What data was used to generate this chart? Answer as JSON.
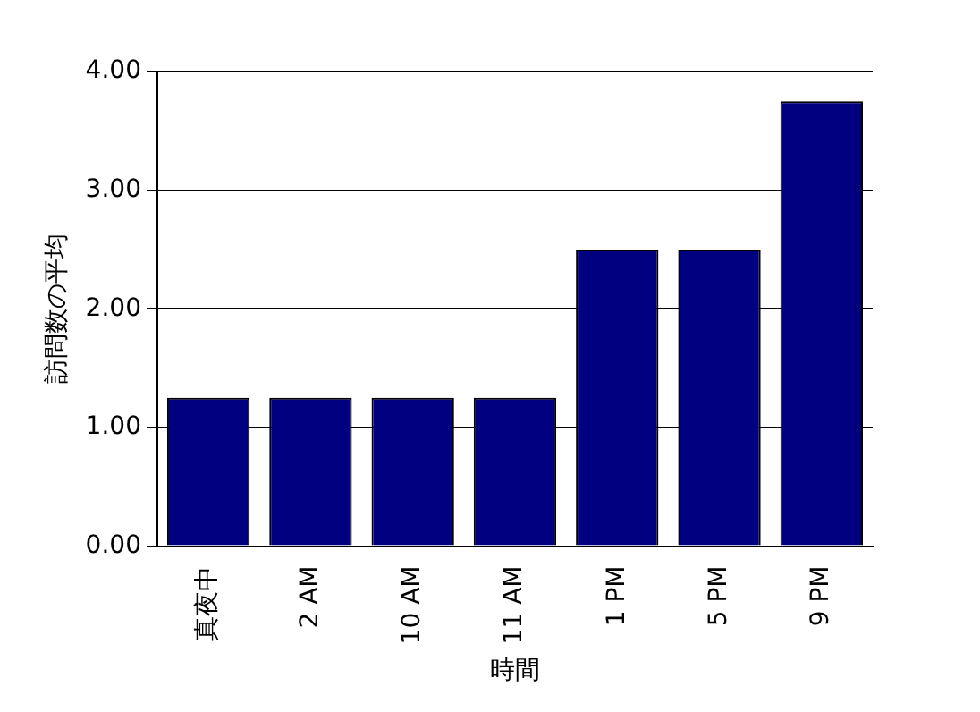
{
  "chart_data": {
    "type": "bar",
    "xlabel": "時間",
    "ylabel": "訪問数の平均",
    "categories": [
      "真夜中",
      "2 AM",
      "10 AM",
      "11 AM",
      "1 PM",
      "5 PM",
      "9 PM"
    ],
    "values": [
      1.25,
      1.25,
      1.25,
      1.25,
      2.5,
      2.5,
      3.75
    ],
    "color": "#000080",
    "ylim": [
      0,
      4
    ],
    "yticks": [
      {
        "value": 0,
        "label": "0.00"
      },
      {
        "value": 1,
        "label": "1.00"
      },
      {
        "value": 2,
        "label": "2.00"
      },
      {
        "value": 3,
        "label": "3.00"
      },
      {
        "value": 4,
        "label": "4.00"
      }
    ],
    "grid": "y",
    "legend": false
  }
}
